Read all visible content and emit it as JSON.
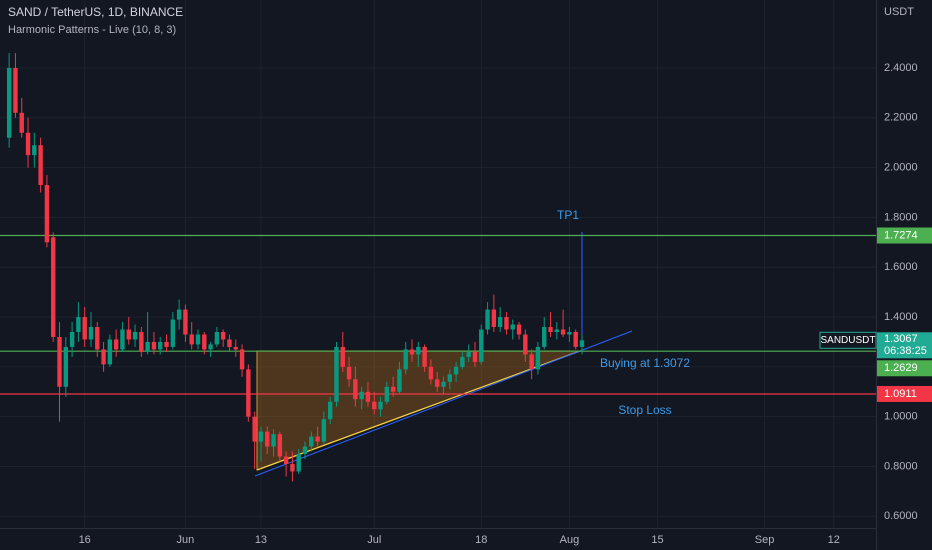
{
  "chart_data": {
    "type": "candlestick",
    "title": "SAND / TetherUS, 1D, BINANCE",
    "subtitle": "Harmonic Patterns - Live (10, 8, 3)",
    "y_axis_label": "USDT",
    "up_color": "#089981",
    "down_color": "#f23645",
    "grid": true,
    "categories": [
      null,
      null,
      null,
      null,
      null,
      null,
      null,
      null,
      null,
      null,
      null,
      null,
      "16",
      null,
      null,
      null,
      null,
      null,
      null,
      null,
      null,
      null,
      null,
      null,
      null,
      null,
      null,
      null,
      "Jun",
      null,
      null,
      null,
      null,
      null,
      null,
      null,
      null,
      null,
      null,
      null,
      "13",
      null,
      null,
      null,
      null,
      null,
      null,
      null,
      null,
      null,
      null,
      null,
      null,
      null,
      null,
      null,
      null,
      null,
      "Jul",
      null,
      null,
      null,
      null,
      null,
      null,
      null,
      null,
      null,
      null,
      null,
      null,
      null,
      null,
      null,
      null,
      "18",
      null,
      null,
      null,
      null,
      null,
      null,
      null,
      null,
      null,
      null,
      null,
      null,
      null,
      "Aug",
      null,
      null,
      null,
      null,
      null,
      null,
      null,
      null,
      null,
      null,
      null,
      null,
      null,
      "15",
      null,
      null,
      null,
      null,
      null,
      null,
      null,
      null,
      null,
      null,
      null,
      null,
      null,
      null,
      null,
      null,
      "Sep",
      null,
      null,
      null,
      null,
      null,
      null,
      null,
      null,
      null,
      null,
      "12",
      null,
      null,
      null,
      null,
      null,
      null
    ],
    "open": [
      2.12,
      2.4,
      2.22,
      2.14,
      2.05,
      2.09,
      1.93,
      1.72,
      1.32,
      1.12,
      1.28,
      1.34,
      1.4,
      1.31,
      1.36,
      1.27,
      1.21,
      1.31,
      1.27,
      1.35,
      1.31,
      1.34,
      1.26,
      1.3,
      1.27,
      1.3,
      1.28,
      1.39,
      1.43,
      1.33,
      1.29,
      1.33,
      1.27,
      1.29,
      1.34,
      1.31,
      1.28,
      1.27,
      1.19,
      1.0,
      0.9,
      0.94,
      0.88,
      0.93,
      0.84,
      0.81,
      0.78,
      0.85,
      0.88,
      0.92,
      0.9,
      0.99,
      1.06,
      1.28,
      1.2,
      1.15,
      1.07,
      1.1,
      1.06,
      1.03,
      1.06,
      1.12,
      1.1,
      1.19,
      1.27,
      1.25,
      1.28,
      1.2,
      1.15,
      1.12,
      1.14,
      1.17,
      1.2,
      1.24,
      1.26,
      1.22,
      1.35,
      1.43,
      1.36,
      1.4,
      1.35,
      1.37,
      1.33,
      1.25,
      1.19,
      1.28,
      1.36,
      1.34,
      1.35,
      1.33,
      1.34,
      1.28,
      null,
      null,
      null,
      null,
      null,
      null,
      null,
      null,
      null,
      null,
      null,
      null,
      null,
      null,
      null,
      null,
      null,
      null,
      null,
      null,
      null,
      null,
      null,
      null,
      null,
      null,
      null,
      null,
      null,
      null,
      null,
      null,
      null,
      null,
      null,
      null,
      null,
      null,
      null,
      null,
      null,
      null,
      null,
      null,
      null,
      null
    ],
    "high": [
      2.46,
      2.46,
      2.28,
      2.2,
      2.14,
      2.12,
      1.97,
      1.74,
      1.38,
      1.32,
      1.38,
      1.46,
      1.44,
      1.42,
      1.38,
      1.3,
      1.33,
      1.35,
      1.38,
      1.4,
      1.37,
      1.36,
      1.42,
      1.34,
      1.32,
      1.33,
      1.42,
      1.47,
      1.45,
      1.38,
      1.35,
      1.34,
      1.3,
      1.36,
      1.35,
      1.33,
      1.31,
      1.29,
      1.21,
      1.02,
      0.96,
      0.96,
      0.95,
      0.94,
      0.86,
      0.86,
      0.87,
      0.9,
      0.94,
      0.96,
      1.02,
      1.08,
      1.3,
      1.34,
      1.24,
      1.2,
      1.12,
      1.14,
      1.1,
      1.08,
      1.14,
      1.16,
      1.22,
      1.3,
      1.31,
      1.3,
      1.29,
      1.23,
      1.18,
      1.16,
      1.19,
      1.22,
      1.26,
      1.29,
      1.3,
      1.37,
      1.46,
      1.49,
      1.44,
      1.42,
      1.39,
      1.38,
      1.35,
      1.27,
      1.3,
      1.4,
      1.42,
      1.38,
      1.43,
      1.36,
      1.35,
      1.33,
      null,
      null,
      null,
      null,
      null,
      null,
      null,
      null,
      null,
      null,
      null,
      null,
      null,
      null,
      null,
      null,
      null,
      null,
      null,
      null,
      null,
      null,
      null,
      null,
      null,
      null,
      null,
      null,
      null,
      null,
      null,
      null,
      null,
      null,
      null,
      null,
      null,
      null,
      null,
      null,
      null,
      null,
      null,
      null,
      null,
      null
    ],
    "low": [
      2.08,
      2.2,
      2.12,
      2.0,
      2.0,
      1.9,
      1.68,
      1.3,
      0.98,
      1.08,
      1.24,
      1.3,
      1.28,
      1.28,
      1.24,
      1.18,
      1.2,
      1.24,
      1.26,
      1.29,
      1.28,
      1.24,
      1.25,
      1.25,
      1.25,
      1.26,
      1.27,
      1.35,
      1.3,
      1.27,
      1.27,
      1.25,
      1.24,
      1.28,
      1.28,
      1.26,
      1.24,
      1.16,
      0.98,
      0.79,
      0.82,
      0.85,
      0.84,
      0.82,
      0.76,
      0.74,
      0.77,
      0.83,
      0.86,
      0.88,
      0.89,
      0.97,
      1.04,
      1.18,
      1.12,
      1.04,
      1.03,
      1.04,
      1.01,
      1.0,
      1.05,
      1.08,
      1.09,
      1.17,
      1.22,
      1.2,
      1.18,
      1.13,
      1.1,
      1.09,
      1.11,
      1.14,
      1.19,
      1.22,
      1.2,
      1.21,
      1.33,
      1.34,
      1.34,
      1.33,
      1.31,
      1.31,
      1.22,
      1.15,
      1.17,
      1.27,
      1.32,
      1.31,
      1.32,
      1.3,
      1.27,
      1.25,
      null,
      null,
      null,
      null,
      null,
      null,
      null,
      null,
      null,
      null,
      null,
      null,
      null,
      null,
      null,
      null,
      null,
      null,
      null,
      null,
      null,
      null,
      null,
      null,
      null,
      null,
      null,
      null,
      null,
      null,
      null,
      null,
      null,
      null,
      null,
      null,
      null,
      null,
      null,
      null,
      null,
      null,
      null,
      null,
      null,
      null
    ],
    "close": [
      2.4,
      2.22,
      2.14,
      2.05,
      2.09,
      1.93,
      1.7,
      1.32,
      1.12,
      1.28,
      1.34,
      1.4,
      1.31,
      1.36,
      1.27,
      1.21,
      1.31,
      1.27,
      1.35,
      1.31,
      1.34,
      1.26,
      1.3,
      1.27,
      1.3,
      1.28,
      1.39,
      1.43,
      1.33,
      1.29,
      1.33,
      1.27,
      1.29,
      1.34,
      1.31,
      1.28,
      1.27,
      1.19,
      1.0,
      0.9,
      0.94,
      0.88,
      0.93,
      0.84,
      0.81,
      0.78,
      0.85,
      0.88,
      0.92,
      0.9,
      0.99,
      1.06,
      1.28,
      1.2,
      1.15,
      1.07,
      1.1,
      1.06,
      1.03,
      1.06,
      1.12,
      1.1,
      1.19,
      1.27,
      1.25,
      1.28,
      1.2,
      1.15,
      1.12,
      1.14,
      1.17,
      1.2,
      1.24,
      1.26,
      1.22,
      1.35,
      1.43,
      1.36,
      1.4,
      1.35,
      1.37,
      1.33,
      1.25,
      1.19,
      1.28,
      1.36,
      1.34,
      1.35,
      1.33,
      1.34,
      1.28,
      1.3067,
      null,
      null,
      null,
      null,
      null,
      null,
      null,
      null,
      null,
      null,
      null,
      null,
      null,
      null,
      null,
      null,
      null,
      null,
      null,
      null,
      null,
      null,
      null,
      null,
      null,
      null,
      null,
      null,
      null,
      null,
      null,
      null,
      null,
      null,
      null,
      null,
      null,
      null,
      null,
      null,
      null,
      null,
      null,
      null,
      null,
      null
    ],
    "ylim": [
      0.553,
      2.673
    ],
    "yticks": [
      {
        "value": 0.6,
        "label": "0.6000"
      },
      {
        "value": 0.8,
        "label": "0.8000"
      },
      {
        "value": 1.0,
        "label": "1.0000"
      },
      {
        "value": 1.2,
        "label": "1.2000"
      },
      {
        "value": 1.4,
        "label": "1.4000"
      },
      {
        "value": 1.6,
        "label": "1.6000"
      },
      {
        "value": 1.8,
        "label": "1.8000"
      },
      {
        "value": 2.0,
        "label": "2.0000"
      },
      {
        "value": 2.2,
        "label": "2.2000"
      },
      {
        "value": 2.4,
        "label": "2.4000"
      }
    ],
    "last_price": {
      "symbol": "SANDUSDT",
      "value": 1.3067,
      "countdown": "06:38:25",
      "color": "#22ab94"
    },
    "levels": [
      {
        "value": 1.7274,
        "color": "#4caf50"
      },
      {
        "value": 1.2629,
        "color": "#4caf50"
      },
      {
        "value": 1.0911,
        "color": "#f23645"
      }
    ],
    "annotations": [
      "TP1",
      "Buying at 1.3072",
      "Stop Loss"
    ]
  }
}
